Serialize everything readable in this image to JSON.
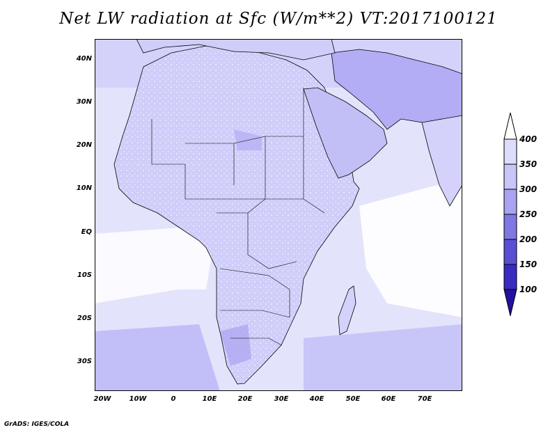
{
  "title": "Net LW radiation at Sfc (W/m**2) VT:2017100121",
  "footer": "GrADS: IGES/COLA",
  "map": {
    "region": "Africa and Arabian Peninsula",
    "variable": "Net longwave radiation at surface",
    "units": "W/m**2",
    "lon_range": [
      -25,
      80
    ],
    "lat_range": [
      -37,
      45
    ],
    "lat_ticks": [
      "40N",
      "30N",
      "20N",
      "10N",
      "EQ",
      "10S",
      "20S",
      "30S"
    ],
    "lon_ticks": [
      "20W",
      "10W",
      "0",
      "10E",
      "20E",
      "30E",
      "40E",
      "50E",
      "60E",
      "70E"
    ],
    "ocean_color": "#ffffff",
    "land_color": "#d4d2fb",
    "desert_color": "#b2adf4",
    "border_color": "#000000"
  },
  "colorbar": {
    "levels": [
      "400",
      "350",
      "300",
      "250",
      "200",
      "150",
      "100"
    ],
    "colors": [
      "#ffffff",
      "#dddcfb",
      "#c8c5f8",
      "#a9a3f1",
      "#7f77e4",
      "#5a4fd4",
      "#3a2cc0",
      "#22119e"
    ]
  }
}
